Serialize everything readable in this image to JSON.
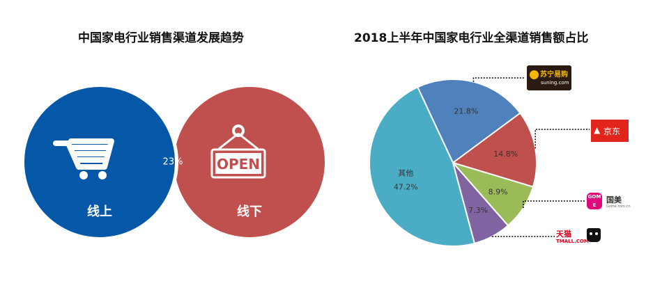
{
  "charts": {
    "venn": {
      "title": "中国家电行业销售渠道发展趋势",
      "online_label": "线上",
      "offline_label": "线下",
      "overlap_label": "23%",
      "colors": {
        "online": "#0558a8",
        "offline": "#c0504d",
        "overlap": "#243f60"
      },
      "icons": {
        "online": "shopping-cart-icon",
        "offline": "open-sign-icon"
      },
      "open_sign_text": "OPEN"
    },
    "pie": {
      "title": "2018上半年中国家电行业全渠道销售额占比"
    }
  },
  "chart_data": {
    "type": "pie",
    "title": "2018上半年中国家电行业全渠道销售额占比",
    "slices": [
      {
        "label": "苏宁易购",
        "value": 21.8,
        "value_label": "21.8%",
        "color": "#4f81bd"
      },
      {
        "label": "京东",
        "value": 14.8,
        "value_label": "14.8%",
        "color": "#c0504d"
      },
      {
        "label": "国美",
        "value": 8.9,
        "value_label": "8.9%",
        "color": "#9bbb59"
      },
      {
        "label": "天猫",
        "value": 7.3,
        "value_label": "7.3%",
        "color": "#8064a2"
      },
      {
        "label": "其他",
        "value": 47.2,
        "value_label": "47.2%",
        "color": "#4bacc6"
      }
    ]
  },
  "logos": {
    "suning": {
      "text": "苏宁易购",
      "subtext": "suning.com",
      "bg": "#2b1a12",
      "accent": "#f5b800"
    },
    "jd": {
      "text": "京东",
      "bg": "#e1251b"
    },
    "gome": {
      "badge": "GOME",
      "text": "国美",
      "subtext": "Gome.com.cn",
      "color": "#e0077d"
    },
    "tmall": {
      "text": "天猫",
      "subtext": "TMALL.COM",
      "color": "#e0001b"
    }
  }
}
